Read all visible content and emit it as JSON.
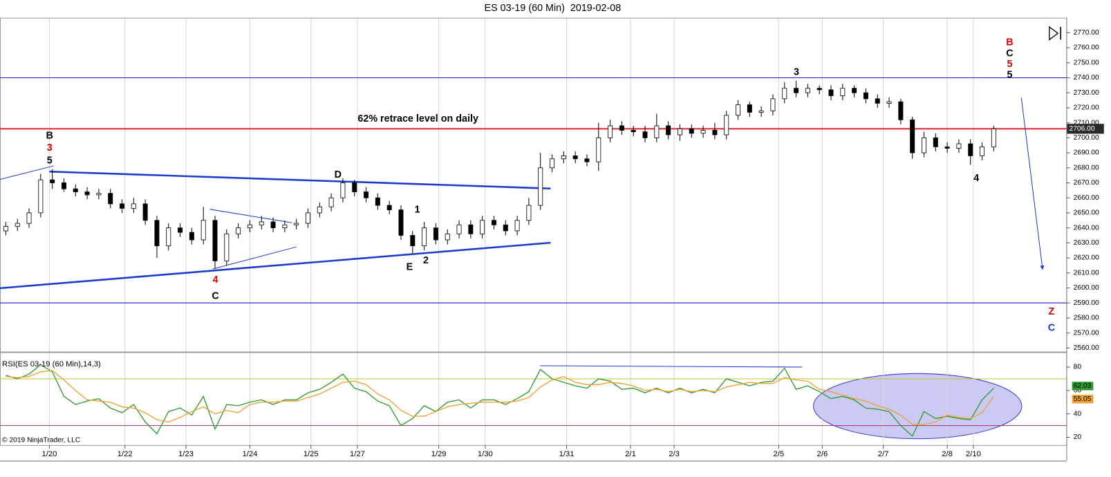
{
  "chart_data": [
    {
      "type": "candlestick",
      "title": "ES 03-19 (60 Min)  2019-02-08",
      "x": [
        2,
        6,
        10,
        14,
        18,
        22,
        26,
        30,
        34,
        38,
        42,
        46,
        50,
        54,
        58,
        62,
        66,
        70,
        74,
        78,
        82,
        86,
        90,
        94,
        98,
        102,
        106,
        110,
        114,
        118,
        122,
        126,
        130,
        134,
        138,
        142,
        146,
        150,
        154,
        158,
        162,
        166,
        170,
        174,
        178,
        182,
        186,
        190,
        194,
        198,
        202,
        206,
        210,
        214,
        218,
        222,
        226,
        230,
        234,
        238,
        242,
        246,
        250,
        254,
        258,
        262,
        266,
        270,
        274,
        278,
        282,
        286,
        290,
        294,
        298,
        302,
        306,
        310,
        314,
        318,
        322,
        326,
        330,
        334,
        338,
        342
      ],
      "open": [
        2638,
        2641,
        2643,
        2650,
        2672,
        2670,
        2666,
        2664,
        2662,
        2663,
        2656,
        2653,
        2656,
        2645,
        2628,
        2640,
        2637,
        2632,
        2645,
        2618,
        2636,
        2640,
        2642,
        2644,
        2640,
        2642,
        2643,
        2650,
        2654,
        2660,
        2670,
        2664,
        2660,
        2655,
        2652,
        2635,
        2628,
        2640,
        2632,
        2636,
        2642,
        2636,
        2645,
        2642,
        2638,
        2645,
        2655,
        2680,
        2686,
        2688,
        2686,
        2684,
        2700,
        2708,
        2705,
        2704,
        2700,
        2708,
        2702,
        2706,
        2703,
        2705,
        2702,
        2715,
        2722,
        2717,
        2718,
        2726,
        2733,
        2730,
        2733,
        2732,
        2728,
        2733,
        2730,
        2726,
        2723,
        2724,
        2712,
        2690,
        2700,
        2694,
        2693,
        2696,
        2688,
        2694
      ],
      "high": [
        2644,
        2646,
        2653,
        2676,
        2679,
        2673,
        2669,
        2667,
        2666,
        2666,
        2659,
        2660,
        2659,
        2648,
        2643,
        2643,
        2640,
        2654,
        2648,
        2639,
        2643,
        2645,
        2648,
        2647,
        2645,
        2646,
        2653,
        2657,
        2663,
        2673,
        2672,
        2667,
        2663,
        2658,
        2655,
        2638,
        2644,
        2643,
        2639,
        2645,
        2645,
        2648,
        2648,
        2645,
        2648,
        2660,
        2690,
        2689,
        2691,
        2691,
        2689,
        2710,
        2712,
        2711,
        2708,
        2708,
        2716,
        2711,
        2709,
        2709,
        2708,
        2710,
        2718,
        2725,
        2724,
        2721,
        2729,
        2737,
        2738,
        2736,
        2735,
        2735,
        2736,
        2735,
        2733,
        2729,
        2727,
        2726,
        2714,
        2704,
        2703,
        2697,
        2699,
        2699,
        2697,
        2708
      ],
      "low": [
        2635,
        2638,
        2640,
        2647,
        2666,
        2664,
        2661,
        2659,
        2659,
        2653,
        2650,
        2650,
        2642,
        2620,
        2625,
        2634,
        2629,
        2629,
        2613,
        2615,
        2633,
        2637,
        2639,
        2637,
        2637,
        2639,
        2640,
        2647,
        2651,
        2657,
        2661,
        2657,
        2652,
        2649,
        2632,
        2623,
        2625,
        2629,
        2629,
        2633,
        2633,
        2633,
        2639,
        2635,
        2635,
        2642,
        2652,
        2677,
        2683,
        2683,
        2681,
        2678,
        2697,
        2702,
        2701,
        2697,
        2697,
        2699,
        2698,
        2700,
        2700,
        2699,
        2699,
        2712,
        2714,
        2714,
        2715,
        2723,
        2727,
        2727,
        2729,
        2725,
        2725,
        2727,
        2723,
        2720,
        2720,
        2709,
        2686,
        2687,
        2691,
        2690,
        2690,
        2682,
        2685,
        2691
      ],
      "close": [
        2641,
        2643,
        2650,
        2672,
        2670,
        2666,
        2664,
        2662,
        2663,
        2656,
        2653,
        2656,
        2645,
        2628,
        2640,
        2637,
        2632,
        2645,
        2618,
        2636,
        2640,
        2642,
        2644,
        2640,
        2642,
        2643,
        2650,
        2654,
        2660,
        2670,
        2664,
        2660,
        2655,
        2652,
        2635,
        2628,
        2640,
        2632,
        2636,
        2642,
        2636,
        2645,
        2642,
        2638,
        2645,
        2655,
        2680,
        2686,
        2688,
        2686,
        2684,
        2700,
        2708,
        2705,
        2704,
        2700,
        2708,
        2702,
        2706,
        2703,
        2705,
        2702,
        2715,
        2722,
        2717,
        2718,
        2726,
        2733,
        2730,
        2733,
        2732,
        2728,
        2733,
        2730,
        2726,
        2723,
        2724,
        2712,
        2690,
        2700,
        2694,
        2693,
        2696,
        2688,
        2694,
        2706
      ],
      "up_color": "#ffffff",
      "down_color": "#000000",
      "xlim": [
        0,
        367
      ],
      "ylim": [
        2557.6,
        2780
      ],
      "xticks": [
        {
          "value": 17,
          "label": "1/20"
        },
        {
          "value": 43,
          "label": "1/22"
        },
        {
          "value": 64,
          "label": "1/23"
        },
        {
          "value": 86,
          "label": "1/24"
        },
        {
          "value": 107,
          "label": "1/25"
        },
        {
          "value": 123,
          "label": "1/27"
        },
        {
          "value": 151,
          "label": "1/29"
        },
        {
          "value": 167,
          "label": "1/30"
        },
        {
          "value": 195,
          "label": "1/31"
        },
        {
          "value": 217,
          "label": "2/1"
        },
        {
          "value": 232,
          "label": "2/3"
        },
        {
          "value": 268,
          "label": "2/5"
        },
        {
          "value": 283,
          "label": "2/6"
        },
        {
          "value": 304,
          "label": "2/7"
        },
        {
          "value": 326,
          "label": "2/8"
        },
        {
          "value": 335,
          "label": "2/10"
        }
      ],
      "yticks": [
        {
          "value": 2560,
          "label": "2560.00"
        },
        {
          "value": 2570,
          "label": "2570.00"
        },
        {
          "value": 2580,
          "label": "2580.00"
        },
        {
          "value": 2590,
          "label": "2590.00"
        },
        {
          "value": 2600,
          "label": "2600.00"
        },
        {
          "value": 2610,
          "label": "2610.00"
        },
        {
          "value": 2620,
          "label": "2620.00"
        },
        {
          "value": 2630,
          "label": "2630.00"
        },
        {
          "value": 2640,
          "label": "2640.00"
        },
        {
          "value": 2650,
          "label": "2650.00"
        },
        {
          "value": 2660,
          "label": "2660.00"
        },
        {
          "value": 2670,
          "label": "2670.00"
        },
        {
          "value": 2680,
          "label": "2680.00"
        },
        {
          "value": 2690,
          "label": "2690.00"
        },
        {
          "value": 2700,
          "label": "2700.00"
        },
        {
          "value": 2710,
          "label": "2710.00"
        },
        {
          "value": 2720,
          "label": "2720.00"
        },
        {
          "value": 2730,
          "label": "2730.00"
        },
        {
          "value": 2740,
          "label": "2740.00"
        },
        {
          "value": 2750,
          "label": "2750.00"
        },
        {
          "value": 2760,
          "label": "2760.00"
        },
        {
          "value": 2770,
          "label": "2770.00"
        }
      ],
      "levels": [
        {
          "value": 2740,
          "color": "#1a1acc"
        },
        {
          "value": 2590,
          "color": "#1a1acc"
        },
        {
          "value": 2706,
          "label": "2706.00",
          "color": "#e03040"
        }
      ],
      "trendlines": [
        {
          "x": [
            0,
            18.5
          ],
          "y": [
            2672.3,
            2681.3
          ],
          "color": "#1a3ccc",
          "weight": "thin"
        },
        {
          "x": [
            17,
            189.5
          ],
          "y": [
            2677.5,
            2666.2
          ],
          "color": "#1a3ccc",
          "weight": "bold"
        },
        {
          "x": [
            0,
            189.5
          ],
          "y": [
            2599.8,
            2630.1
          ],
          "color": "#1a3ccc",
          "weight": "bold"
        },
        {
          "x": [
            72.2,
            100.5
          ],
          "y": [
            2652.4,
            2643.4
          ],
          "color": "#1a3ccc",
          "weight": "thin"
        },
        {
          "x": [
            73.2,
            102
          ],
          "y": [
            2612.6,
            2627.3
          ],
          "color": "#1a3ccc",
          "weight": "thin"
        },
        {
          "x": [
            351.5,
            358.8
          ],
          "y": [
            2726.8,
            2612.6
          ],
          "color": "#1a3ccc",
          "weight": "thin",
          "arrow": true
        }
      ],
      "annotations": [
        {
          "text": "62% retrace level on daily",
          "color": "#000000"
        },
        {
          "text": "B",
          "color": "#000000"
        },
        {
          "text": "3",
          "color": "#d40000"
        },
        {
          "text": "5",
          "color": "#000000"
        },
        {
          "text": "D",
          "color": "#000000"
        },
        {
          "text": "1",
          "color": "#000000"
        },
        {
          "text": "2",
          "color": "#000000"
        },
        {
          "text": "E",
          "color": "#000000"
        },
        {
          "text": "4",
          "color": "#d40000"
        },
        {
          "text": "C",
          "color": "#000000"
        },
        {
          "text": "3",
          "color": "#000000"
        },
        {
          "text": "4",
          "color": "#000000"
        },
        {
          "text": "B",
          "color": "#d40000"
        },
        {
          "text": "C",
          "color": "#000000"
        },
        {
          "text": "5",
          "color": "#d40000"
        },
        {
          "text": "5",
          "color": "#000000"
        },
        {
          "text": "Z",
          "color": "#d40000"
        },
        {
          "text": "C",
          "color": "#1a3ccc"
        }
      ]
    },
    {
      "type": "line",
      "title": "RSI(ES 03-19 (60 Min),14,3)",
      "x": [
        2,
        6,
        10,
        14,
        18,
        22,
        26,
        30,
        34,
        38,
        42,
        46,
        50,
        54,
        58,
        62,
        66,
        70,
        74,
        78,
        82,
        86,
        90,
        94,
        98,
        102,
        106,
        110,
        114,
        118,
        122,
        126,
        130,
        134,
        138,
        142,
        146,
        150,
        154,
        158,
        162,
        166,
        170,
        174,
        178,
        182,
        186,
        190,
        194,
        198,
        202,
        206,
        210,
        214,
        218,
        222,
        226,
        230,
        234,
        238,
        242,
        246,
        250,
        254,
        258,
        262,
        266,
        270,
        274,
        278,
        282,
        286,
        290,
        294,
        298,
        302,
        306,
        310,
        314,
        318,
        322,
        326,
        330,
        334,
        338,
        342
      ],
      "series": [
        {
          "color": "#2e9a2e",
          "values": [
            73,
            70,
            74,
            82,
            76,
            55,
            48,
            51,
            53,
            45,
            41,
            48,
            33,
            23,
            42,
            45,
            39,
            55,
            27,
            48,
            47,
            50,
            52,
            48,
            52,
            52,
            58,
            61,
            67,
            74,
            62,
            59,
            51,
            47,
            30,
            36,
            47,
            42,
            50,
            52,
            45,
            52,
            52,
            48,
            53,
            59,
            78,
            70,
            67,
            64,
            62,
            70,
            68,
            61,
            62,
            58,
            62,
            58,
            62,
            58,
            61,
            58,
            70,
            67,
            64,
            67,
            68,
            79,
            61,
            64,
            59,
            53,
            55,
            52,
            45,
            44,
            42,
            30,
            21,
            42,
            36,
            38,
            36,
            35,
            52,
            62.03
          ]
        },
        {
          "color": "#f0a030",
          "values": [
            72,
            71,
            72,
            76,
            77,
            69,
            60,
            52,
            51,
            50,
            46,
            45,
            41,
            35,
            33,
            37,
            42,
            46,
            40,
            43,
            41,
            48,
            50,
            50,
            51,
            51,
            54,
            57,
            62,
            67,
            68,
            65,
            57,
            52,
            43,
            38,
            38,
            42,
            46,
            48,
            49,
            50,
            50,
            50,
            51,
            54,
            63,
            69,
            72,
            67,
            65,
            65,
            67,
            66,
            64,
            60,
            61,
            59,
            61,
            59,
            60,
            59,
            63,
            65,
            67,
            66,
            66,
            71,
            69,
            68,
            61,
            59,
            56,
            53,
            51,
            47,
            44,
            39,
            31,
            31,
            33,
            39,
            37,
            36,
            41,
            55.05
          ]
        }
      ],
      "xlim": [
        0,
        367
      ],
      "ylim": [
        13.3,
        92.7
      ],
      "yticks": [
        20,
        40,
        60,
        80
      ],
      "levels": [
        {
          "value": 70,
          "color": "#b5c832"
        },
        {
          "value": 30,
          "color": "#a0307a"
        }
      ],
      "trendlines": [
        {
          "x": [
            185.9,
            276.1
          ],
          "y": [
            81.2,
            80
          ],
          "color": "#1a3ccc",
          "weight": "thin"
        }
      ]
    }
  ],
  "copyright": "© 2019 NinjaTrader, LLC"
}
